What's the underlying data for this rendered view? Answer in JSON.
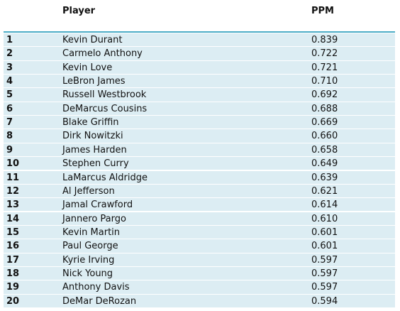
{
  "table": {
    "header": [
      "",
      "Player",
      "PPM"
    ],
    "rows": [
      [
        "1",
        "Kevin Durant",
        "0.839"
      ],
      [
        "2",
        "Carmelo Anthony",
        "0.722"
      ],
      [
        "3",
        "Kevin Love",
        "0.721"
      ],
      [
        "4",
        "LeBron James",
        "0.710"
      ],
      [
        "5",
        "Russell Westbrook",
        "0.692"
      ],
      [
        "6",
        "DeMarcus Cousins",
        "0.688"
      ],
      [
        "7",
        "Blake Griffin",
        "0.669"
      ],
      [
        "8",
        "Dirk Nowitzki",
        "0.660"
      ],
      [
        "9",
        "James Harden",
        "0.658"
      ],
      [
        "10",
        "Stephen Curry",
        "0.649"
      ],
      [
        "11",
        "LaMarcus Aldridge",
        "0.639"
      ],
      [
        "12",
        "Al Jefferson",
        "0.621"
      ],
      [
        "13",
        "Jamal Crawford",
        "0.614"
      ],
      [
        "14",
        "Jannero Pargo",
        "0.610"
      ],
      [
        "15",
        "Kevin Martin",
        "0.601"
      ],
      [
        "16",
        "Paul George",
        "0.601"
      ],
      [
        "17",
        "Kyrie Irving",
        "0.597"
      ],
      [
        "18",
        "Nick Young",
        "0.597"
      ],
      [
        "19",
        "Anthony Davis",
        "0.597"
      ],
      [
        "20",
        "DeMar DeRozan",
        "0.594"
      ]
    ]
  }
}
